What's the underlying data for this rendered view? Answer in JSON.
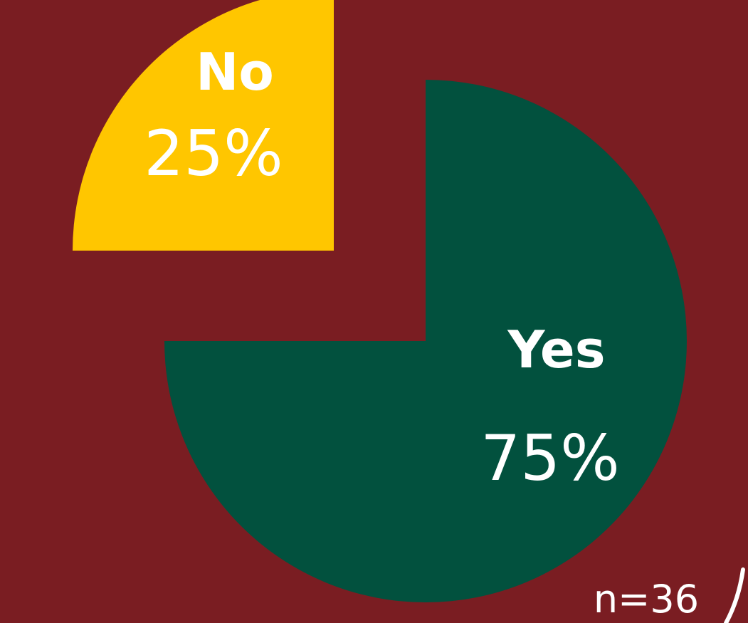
{
  "chart_data": {
    "type": "pie",
    "categories": [
      "Yes",
      "No"
    ],
    "values": [
      75,
      25
    ],
    "labels": [
      "75%",
      "25%"
    ],
    "exploded": [
      "No"
    ],
    "colors": {
      "Yes": "#02513e",
      "No": "#ffc600",
      "background": "#7a1d22",
      "text": "#ffffff"
    },
    "note": "n=36"
  }
}
